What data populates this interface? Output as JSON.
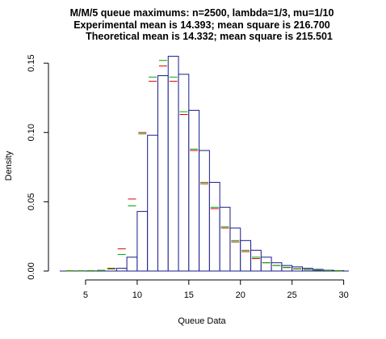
{
  "chart_data": {
    "type": "histogram",
    "title_lines": [
      "M/M/5 queue maximums: n=2500, lambda=1/3, mu=1/10",
      "Experimental mean is 14.393; mean square is 216.700",
      "Theoretical mean is 14.332; mean square is 215.501"
    ],
    "xlabel": "Queue Data",
    "ylabel": "Density",
    "xlim": [
      2.5,
      30.5
    ],
    "ylim": [
      0,
      0.16
    ],
    "x_ticks": [
      5,
      10,
      15,
      20,
      25,
      30
    ],
    "y_ticks": [
      0.0,
      0.05,
      0.1,
      0.15
    ],
    "y_tick_labels": [
      "0.00",
      "0.05",
      "0.10",
      "0.15"
    ],
    "bin_width": 1,
    "bin_left_edges": [
      8,
      9,
      10,
      11,
      12,
      13,
      14,
      15,
      16,
      17,
      18,
      19,
      20,
      21,
      22,
      23,
      24,
      25,
      26,
      27,
      28,
      29
    ],
    "density": [
      0.002,
      0.01,
      0.043,
      0.098,
      0.141,
      0.155,
      0.142,
      0.116,
      0.087,
      0.064,
      0.046,
      0.031,
      0.022,
      0.015,
      0.01,
      0.006,
      0.004,
      0.003,
      0.002,
      0.0012,
      0.0006,
      0.0003
    ],
    "baseline_range": [
      2.5,
      30.5
    ],
    "marker_series": [
      {
        "color": "#dd0000",
        "x": [
          3.5,
          4.5,
          5.5,
          6.5,
          7.5,
          8.5,
          9.5,
          10.5,
          11.5,
          12.5,
          13.5,
          14.5,
          15.5,
          16.5,
          17.5,
          18.5,
          19.5,
          20.5,
          21.5,
          22.5,
          23.5,
          24.5,
          25.5,
          26.5,
          27.5,
          28.5,
          29.5
        ],
        "values": [
          0.0002,
          0.0002,
          0.0003,
          0.0005,
          0.002,
          0.016,
          0.052,
          0.1,
          0.137,
          0.148,
          0.137,
          0.113,
          0.087,
          0.063,
          0.045,
          0.031,
          0.021,
          0.014,
          0.009,
          0.006,
          0.004,
          0.0025,
          0.0015,
          0.001,
          0.0006,
          0.0004,
          0.0002
        ]
      },
      {
        "color": "#00aa00",
        "x": [
          3.5,
          4.5,
          5.5,
          6.5,
          7.5,
          8.5,
          9.5,
          10.5,
          11.5,
          12.5,
          13.5,
          14.5,
          15.5,
          16.5,
          17.5,
          18.5,
          19.5,
          20.5,
          21.5,
          22.5,
          23.5,
          24.5,
          25.5,
          26.5,
          27.5,
          28.5,
          29.5
        ],
        "values": [
          0.0001,
          0.0001,
          0.0002,
          0.0004,
          0.0015,
          0.012,
          0.047,
          0.099,
          0.14,
          0.152,
          0.14,
          0.115,
          0.088,
          0.064,
          0.046,
          0.032,
          0.022,
          0.015,
          0.01,
          0.006,
          0.004,
          0.0027,
          0.0017,
          0.0011,
          0.0007,
          0.0004,
          0.0002
        ]
      }
    ]
  }
}
